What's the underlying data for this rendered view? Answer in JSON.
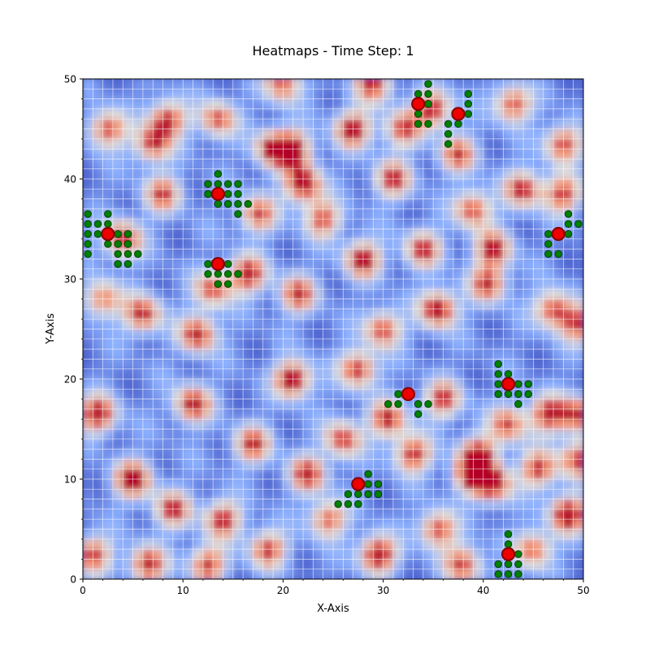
{
  "chart_data": {
    "type": "heatmap",
    "title": "Heatmaps - Time Step: 1",
    "xlabel": "X-Axis",
    "ylabel": "Y-Axis",
    "xlim": [
      0,
      50
    ],
    "ylim": [
      0,
      50
    ],
    "x_ticks": [
      "0",
      "10",
      "20",
      "30",
      "40",
      "50"
    ],
    "y_ticks": [
      "0",
      "10",
      "20",
      "30",
      "40",
      "50"
    ],
    "grid": true,
    "colormap": [
      "#3b4cc0",
      "#8db0fe",
      "#dddcdc",
      "#f49a7b",
      "#b40426"
    ],
    "hot_spots": [
      {
        "x": 22,
        "y": 39.5,
        "v": 1.0
      },
      {
        "x": 21,
        "y": 43,
        "v": 0.9
      },
      {
        "x": 28,
        "y": 32,
        "v": 0.9
      },
      {
        "x": 29.5,
        "y": 2.5,
        "v": 1.0
      },
      {
        "x": 35.5,
        "y": 27,
        "v": 1.0
      },
      {
        "x": 39,
        "y": 10.5,
        "v": 1.0
      },
      {
        "x": 41,
        "y": 9.5,
        "v": 0.9
      },
      {
        "x": 21,
        "y": 20,
        "v": 1.0
      },
      {
        "x": 48.5,
        "y": 6.5,
        "v": 1.0
      },
      {
        "x": 4,
        "y": 34,
        "v": 0.9
      },
      {
        "x": 35,
        "y": 47,
        "v": 0.9
      },
      {
        "x": 39.5,
        "y": 12.5,
        "v": 0.85
      },
      {
        "x": 19,
        "y": 43,
        "v": 0.85
      },
      {
        "x": 5,
        "y": 10,
        "v": 1.0
      },
      {
        "x": 1.5,
        "y": 16.5,
        "v": 0.95
      },
      {
        "x": 27,
        "y": 45,
        "v": 0.9
      },
      {
        "x": 8.5,
        "y": 46,
        "v": 0.85
      },
      {
        "x": 7,
        "y": 43.5,
        "v": 0.8
      },
      {
        "x": 44,
        "y": 39,
        "v": 0.85
      },
      {
        "x": 48,
        "y": 38.5,
        "v": 0.8
      },
      {
        "x": 6,
        "y": 26.5,
        "v": 0.85
      },
      {
        "x": 11.5,
        "y": 24.5,
        "v": 0.9
      },
      {
        "x": 11,
        "y": 17.5,
        "v": 0.9
      },
      {
        "x": 16.5,
        "y": 30.5,
        "v": 0.9
      },
      {
        "x": 27.5,
        "y": 21,
        "v": 0.85
      },
      {
        "x": 21.5,
        "y": 28.5,
        "v": 0.8
      },
      {
        "x": 31,
        "y": 40,
        "v": 0.8
      },
      {
        "x": 34,
        "y": 33,
        "v": 0.8
      },
      {
        "x": 43,
        "y": 47.5,
        "v": 0.8
      },
      {
        "x": 48,
        "y": 43.5,
        "v": 0.8
      },
      {
        "x": 41,
        "y": 33,
        "v": 0.85
      },
      {
        "x": 40.5,
        "y": 29.5,
        "v": 0.8
      },
      {
        "x": 30.5,
        "y": 16,
        "v": 0.85
      },
      {
        "x": 36,
        "y": 18,
        "v": 0.8
      },
      {
        "x": 46.5,
        "y": 16.5,
        "v": 0.85
      },
      {
        "x": 49.5,
        "y": 16.5,
        "v": 0.8
      },
      {
        "x": 17,
        "y": 13.5,
        "v": 0.8
      },
      {
        "x": 14,
        "y": 6,
        "v": 0.85
      },
      {
        "x": 9,
        "y": 7,
        "v": 0.8
      },
      {
        "x": 45.5,
        "y": 11,
        "v": 0.8
      },
      {
        "x": 49.5,
        "y": 12,
        "v": 0.8
      },
      {
        "x": 1,
        "y": 2.5,
        "v": 0.8
      },
      {
        "x": 6.5,
        "y": 1.5,
        "v": 0.85
      },
      {
        "x": 12.5,
        "y": 1.5,
        "v": 0.8
      },
      {
        "x": 18.5,
        "y": 3,
        "v": 0.8
      },
      {
        "x": 22.5,
        "y": 10.5,
        "v": 0.85
      },
      {
        "x": 30,
        "y": 25,
        "v": 0.8
      },
      {
        "x": 33,
        "y": 12.5,
        "v": 0.85
      },
      {
        "x": 35.5,
        "y": 5,
        "v": 0.8
      },
      {
        "x": 38,
        "y": 1.5,
        "v": 0.8
      },
      {
        "x": 47,
        "y": 27,
        "v": 0.8
      },
      {
        "x": 49.5,
        "y": 25.5,
        "v": 0.75
      },
      {
        "x": 2,
        "y": 28,
        "v": 0.7
      },
      {
        "x": 2.5,
        "y": 45,
        "v": 0.8
      },
      {
        "x": 13.5,
        "y": 46,
        "v": 0.75
      },
      {
        "x": 32,
        "y": 45,
        "v": 0.75
      },
      {
        "x": 39,
        "y": 37,
        "v": 0.8
      },
      {
        "x": 24,
        "y": 36,
        "v": 0.75
      },
      {
        "x": 26,
        "y": 14,
        "v": 0.8
      },
      {
        "x": 42.5,
        "y": 15.5,
        "v": 0.75
      },
      {
        "x": 24.5,
        "y": 6,
        "v": 0.75
      },
      {
        "x": 45,
        "y": 3,
        "v": 0.75
      },
      {
        "x": 13,
        "y": 29,
        "v": 0.75
      },
      {
        "x": 20,
        "y": 49.5,
        "v": 0.75
      },
      {
        "x": 29,
        "y": 49.5,
        "v": 0.8
      },
      {
        "x": 37.5,
        "y": 42.5,
        "v": 0.75
      },
      {
        "x": 17.5,
        "y": 36.5,
        "v": 0.75
      },
      {
        "x": 8,
        "y": 38.5,
        "v": 0.75
      }
    ],
    "agents": [
      {
        "x": 2.5,
        "y": 34.5
      },
      {
        "x": 13.5,
        "y": 38.5
      },
      {
        "x": 13.5,
        "y": 31.5
      },
      {
        "x": 33.5,
        "y": 47.5
      },
      {
        "x": 37.5,
        "y": 46.5
      },
      {
        "x": 47.5,
        "y": 34.5
      },
      {
        "x": 42.5,
        "y": 19.5
      },
      {
        "x": 32.5,
        "y": 18.5
      },
      {
        "x": 27.5,
        "y": 9.5
      },
      {
        "x": 42.5,
        "y": 2.5
      }
    ],
    "neighbors": [
      {
        "x": 0.5,
        "y": 36.5
      },
      {
        "x": 0.5,
        "y": 35.5
      },
      {
        "x": 1.5,
        "y": 35.5
      },
      {
        "x": 2.5,
        "y": 36.5
      },
      {
        "x": 2.5,
        "y": 35.5
      },
      {
        "x": 0.5,
        "y": 34.5
      },
      {
        "x": 1.5,
        "y": 34.5
      },
      {
        "x": 0.5,
        "y": 33.5
      },
      {
        "x": 2.5,
        "y": 33.5
      },
      {
        "x": 3.5,
        "y": 34.5
      },
      {
        "x": 4.5,
        "y": 34.5
      },
      {
        "x": 3.5,
        "y": 33.5
      },
      {
        "x": 4.5,
        "y": 33.5
      },
      {
        "x": 0.5,
        "y": 32.5
      },
      {
        "x": 3.5,
        "y": 32.5
      },
      {
        "x": 4.5,
        "y": 32.5
      },
      {
        "x": 5.5,
        "y": 32.5
      },
      {
        "x": 3.5,
        "y": 31.5
      },
      {
        "x": 4.5,
        "y": 31.5
      },
      {
        "x": 13.5,
        "y": 40.5
      },
      {
        "x": 12.5,
        "y": 39.5
      },
      {
        "x": 13.5,
        "y": 39.5
      },
      {
        "x": 14.5,
        "y": 39.5
      },
      {
        "x": 15.5,
        "y": 39.5
      },
      {
        "x": 12.5,
        "y": 38.5
      },
      {
        "x": 14.5,
        "y": 38.5
      },
      {
        "x": 15.5,
        "y": 38.5
      },
      {
        "x": 13.5,
        "y": 37.5
      },
      {
        "x": 14.5,
        "y": 37.5
      },
      {
        "x": 15.5,
        "y": 37.5
      },
      {
        "x": 16.5,
        "y": 37.5
      },
      {
        "x": 15.5,
        "y": 36.5
      },
      {
        "x": 12.5,
        "y": 31.5
      },
      {
        "x": 14.5,
        "y": 31.5
      },
      {
        "x": 12.5,
        "y": 30.5
      },
      {
        "x": 13.5,
        "y": 30.5
      },
      {
        "x": 14.5,
        "y": 30.5
      },
      {
        "x": 15.5,
        "y": 30.5
      },
      {
        "x": 13.5,
        "y": 29.5
      },
      {
        "x": 14.5,
        "y": 29.5
      },
      {
        "x": 34.5,
        "y": 49.5
      },
      {
        "x": 33.5,
        "y": 48.5
      },
      {
        "x": 34.5,
        "y": 48.5
      },
      {
        "x": 34.5,
        "y": 47.5
      },
      {
        "x": 33.5,
        "y": 46.5
      },
      {
        "x": 33.5,
        "y": 45.5
      },
      {
        "x": 34.5,
        "y": 45.5
      },
      {
        "x": 38.5,
        "y": 48.5
      },
      {
        "x": 38.5,
        "y": 47.5
      },
      {
        "x": 38.5,
        "y": 46.5
      },
      {
        "x": 36.5,
        "y": 45.5
      },
      {
        "x": 37.5,
        "y": 45.5
      },
      {
        "x": 36.5,
        "y": 44.5
      },
      {
        "x": 36.5,
        "y": 43.5
      },
      {
        "x": 48.5,
        "y": 36.5
      },
      {
        "x": 48.5,
        "y": 35.5
      },
      {
        "x": 49.5,
        "y": 35.5
      },
      {
        "x": 46.5,
        "y": 34.5
      },
      {
        "x": 48.5,
        "y": 34.5
      },
      {
        "x": 46.5,
        "y": 33.5
      },
      {
        "x": 46.5,
        "y": 32.5
      },
      {
        "x": 47.5,
        "y": 32.5
      },
      {
        "x": 41.5,
        "y": 21.5
      },
      {
        "x": 41.5,
        "y": 20.5
      },
      {
        "x": 42.5,
        "y": 20.5
      },
      {
        "x": 41.5,
        "y": 19.5
      },
      {
        "x": 43.5,
        "y": 19.5
      },
      {
        "x": 44.5,
        "y": 19.5
      },
      {
        "x": 41.5,
        "y": 18.5
      },
      {
        "x": 42.5,
        "y": 18.5
      },
      {
        "x": 43.5,
        "y": 18.5
      },
      {
        "x": 44.5,
        "y": 18.5
      },
      {
        "x": 43.5,
        "y": 17.5
      },
      {
        "x": 31.5,
        "y": 18.5
      },
      {
        "x": 30.5,
        "y": 17.5
      },
      {
        "x": 31.5,
        "y": 17.5
      },
      {
        "x": 33.5,
        "y": 17.5
      },
      {
        "x": 34.5,
        "y": 17.5
      },
      {
        "x": 33.5,
        "y": 16.5
      },
      {
        "x": 28.5,
        "y": 10.5
      },
      {
        "x": 28.5,
        "y": 9.5
      },
      {
        "x": 29.5,
        "y": 9.5
      },
      {
        "x": 26.5,
        "y": 8.5
      },
      {
        "x": 27.5,
        "y": 8.5
      },
      {
        "x": 28.5,
        "y": 8.5
      },
      {
        "x": 29.5,
        "y": 8.5
      },
      {
        "x": 25.5,
        "y": 7.5
      },
      {
        "x": 26.5,
        "y": 7.5
      },
      {
        "x": 27.5,
        "y": 7.5
      },
      {
        "x": 42.5,
        "y": 4.5
      },
      {
        "x": 42.5,
        "y": 3.5
      },
      {
        "x": 43.5,
        "y": 2.5
      },
      {
        "x": 41.5,
        "y": 1.5
      },
      {
        "x": 42.5,
        "y": 1.5
      },
      {
        "x": 43.5,
        "y": 1.5
      },
      {
        "x": 41.5,
        "y": 0.5
      },
      {
        "x": 42.5,
        "y": 0.5
      },
      {
        "x": 43.5,
        "y": 0.5
      }
    ],
    "agent_color": "#ee0000",
    "agent_edge_color": "#8b0000",
    "neighbor_color": "#008000",
    "neighbor_edge_color": "#004000",
    "gridline_color": "#ffffff"
  }
}
